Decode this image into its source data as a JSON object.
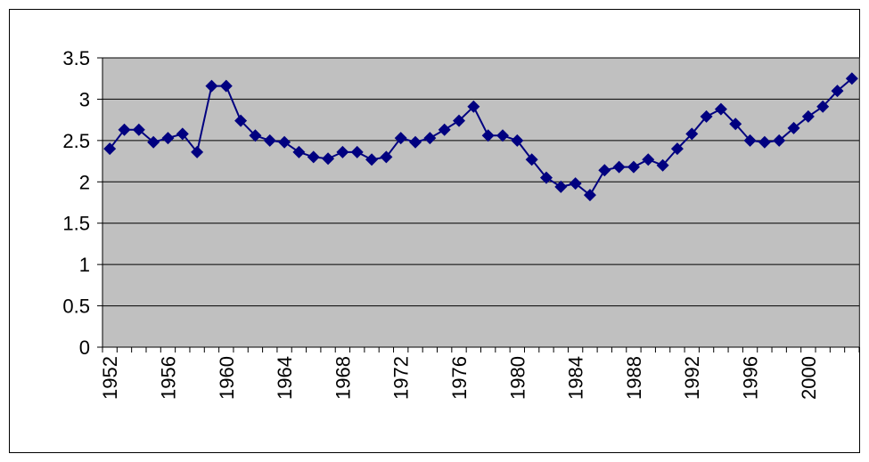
{
  "chart_data": {
    "type": "line",
    "categories": [
      "1952",
      null,
      null,
      null,
      "1956",
      null,
      null,
      null,
      "1960",
      null,
      null,
      null,
      "1964",
      null,
      null,
      null,
      "1968",
      null,
      null,
      null,
      "1972",
      null,
      null,
      null,
      "1976",
      null,
      null,
      null,
      "1980",
      null,
      null,
      null,
      "1984",
      null,
      null,
      null,
      "1988",
      null,
      null,
      null,
      "1992",
      null,
      null,
      null,
      "1996",
      null,
      null,
      null,
      "2000",
      null,
      null,
      null
    ],
    "series": [
      {
        "color": "#000080",
        "values": [
          2.4,
          2.63,
          2.63,
          2.48,
          2.53,
          2.58,
          2.36,
          3.16,
          3.16,
          2.74,
          2.56,
          2.5,
          2.48,
          2.36,
          2.3,
          2.28,
          2.36,
          2.36,
          2.27,
          2.3,
          2.53,
          2.48,
          2.53,
          2.63,
          2.74,
          2.91,
          2.56,
          2.56,
          2.5,
          2.27,
          2.05,
          1.94,
          1.98,
          1.84,
          2.14,
          2.18,
          2.18,
          2.27,
          2.2,
          2.4,
          2.58,
          2.79,
          2.88,
          2.7,
          2.5,
          2.48,
          2.5,
          2.65,
          2.79,
          2.91,
          3.1,
          3.25
        ]
      }
    ],
    "ylim": [
      0,
      3.5
    ],
    "yticks": [
      0,
      0.5,
      1,
      1.5,
      2,
      2.5,
      3,
      3.5
    ],
    "grid": true,
    "plot_background": "#c0c0c0"
  }
}
